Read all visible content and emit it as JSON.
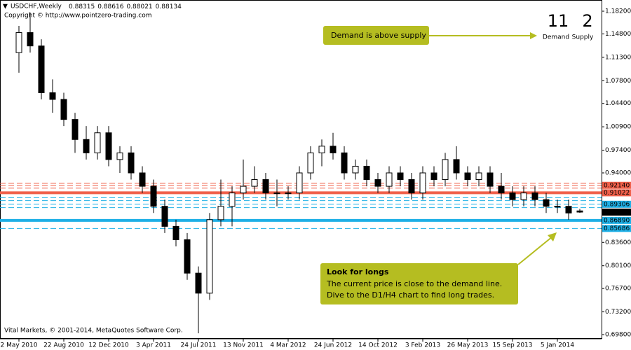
{
  "chart_data": {
    "type": "candlestick",
    "title": "USDCHF,Weekly",
    "last_ohlc": [
      0.88315,
      0.88616,
      0.88021,
      0.88134
    ],
    "copyright": "Copyright © http://www.pointzero-trading.com",
    "footer": "Vital Markets, © 2001-2014, MetaQuotes Software Corp.",
    "score": {
      "demand_count": 11,
      "demand_label": "Demand",
      "demand_color": "#1fb0e6",
      "supply_count": 2,
      "supply_label": "Supply",
      "supply_color": "#f0604a"
    },
    "annotations": [
      {
        "title": "Demand is above supply"
      },
      {
        "title": "Look for longs",
        "lines": [
          "The current price is close to the demand line.",
          "Dive to the D1/H4 chart to find long trades."
        ]
      }
    ],
    "categories": [
      "2 May 2010",
      null,
      null,
      null,
      "22 Aug 2010",
      null,
      null,
      null,
      "12 Dec 2010",
      null,
      null,
      null,
      "3 Apr 2011",
      null,
      null,
      null,
      "24 Jul 2011",
      null,
      null,
      null,
      "13 Nov 2011",
      null,
      null,
      null,
      "4 Mar 2012",
      null,
      null,
      null,
      "24 Jun 2012",
      null,
      null,
      null,
      "14 Oct 2012",
      null,
      null,
      null,
      "3 Feb 2013",
      null,
      null,
      null,
      "26 May 2013",
      null,
      null,
      null,
      "15 Sep 2013",
      null,
      null,
      null,
      "5 Jan 2014",
      null,
      null
    ],
    "open": [
      1.12,
      1.15,
      1.13,
      1.06,
      1.05,
      1.02,
      0.99,
      0.97,
      1.0,
      0.96,
      0.97,
      0.94,
      0.92,
      0.89,
      0.86,
      0.84,
      0.79,
      0.76,
      0.87,
      0.89,
      0.91,
      0.92,
      0.93,
      0.91,
      0.91,
      0.91,
      0.94,
      0.97,
      0.98,
      0.97,
      0.94,
      0.95,
      0.93,
      0.92,
      0.94,
      0.93,
      0.91,
      0.94,
      0.93,
      0.96,
      0.94,
      0.93,
      0.94,
      0.92,
      0.91,
      0.9,
      0.91,
      0.9,
      0.89,
      0.89,
      0.88315
    ],
    "high": [
      1.16,
      1.18,
      1.14,
      1.08,
      1.06,
      1.03,
      1.01,
      1.01,
      1.01,
      0.98,
      0.98,
      0.95,
      0.93,
      0.9,
      0.87,
      0.85,
      0.8,
      0.88,
      0.93,
      0.92,
      0.96,
      0.95,
      0.94,
      0.93,
      0.92,
      0.95,
      0.98,
      0.99,
      1.0,
      0.98,
      0.96,
      0.96,
      0.94,
      0.95,
      0.95,
      0.94,
      0.95,
      0.95,
      0.97,
      0.98,
      0.95,
      0.95,
      0.95,
      0.94,
      0.92,
      0.92,
      0.92,
      0.91,
      0.9,
      0.9,
      0.88616
    ],
    "low": [
      1.09,
      1.12,
      1.05,
      1.03,
      1.01,
      0.97,
      0.96,
      0.96,
      0.95,
      0.94,
      0.93,
      0.91,
      0.88,
      0.85,
      0.83,
      0.78,
      0.7,
      0.75,
      0.86,
      0.86,
      0.9,
      0.91,
      0.9,
      0.89,
      0.9,
      0.9,
      0.93,
      0.95,
      0.96,
      0.93,
      0.93,
      0.92,
      0.91,
      0.91,
      0.92,
      0.9,
      0.9,
      0.92,
      0.92,
      0.93,
      0.92,
      0.92,
      0.91,
      0.9,
      0.89,
      0.89,
      0.89,
      0.88,
      0.88,
      0.87,
      0.88021
    ],
    "close": [
      1.15,
      1.13,
      1.06,
      1.05,
      1.02,
      0.99,
      0.97,
      1.0,
      0.96,
      0.97,
      0.94,
      0.92,
      0.89,
      0.86,
      0.84,
      0.79,
      0.76,
      0.87,
      0.89,
      0.91,
      0.92,
      0.93,
      0.91,
      0.91,
      0.91,
      0.94,
      0.97,
      0.98,
      0.97,
      0.94,
      0.95,
      0.93,
      0.92,
      0.94,
      0.93,
      0.91,
      0.94,
      0.93,
      0.96,
      0.94,
      0.93,
      0.94,
      0.92,
      0.91,
      0.9,
      0.91,
      0.9,
      0.89,
      0.89,
      0.88,
      0.88134
    ],
    "ylim": [
      0.698,
      1.182
    ],
    "yticks": [
      {
        "value": 1.182,
        "label": "1.18200"
      },
      {
        "value": 1.148,
        "label": "1.14800"
      },
      {
        "value": 1.113,
        "label": "1.11300"
      },
      {
        "value": 1.078,
        "label": "1.07800"
      },
      {
        "value": 1.044,
        "label": "1.04400"
      },
      {
        "value": 1.009,
        "label": "1.00900"
      },
      {
        "value": 0.974,
        "label": "0.97400"
      },
      {
        "value": 0.94,
        "label": "0.94000"
      },
      {
        "value": 0.836,
        "label": "0.83600"
      },
      {
        "value": 0.801,
        "label": "0.80100"
      },
      {
        "value": 0.767,
        "label": "0.76700"
      },
      {
        "value": 0.732,
        "label": "0.73200"
      },
      {
        "value": 0.698,
        "label": "0.69800"
      }
    ],
    "levels": [
      {
        "value": 0.9244,
        "color": "#f0604a",
        "style": "dashed"
      },
      {
        "value": 0.9214,
        "label": "0.92140",
        "color": "#f0604a",
        "style": "dashed"
      },
      {
        "value": 0.9172,
        "color": "#f0604a",
        "style": "dashed"
      },
      {
        "value": 0.91022,
        "label": "0.91022",
        "color": "#f0604a",
        "style": "solid"
      },
      {
        "value": 0.903,
        "color": "#1fb0e6",
        "style": "dashed"
      },
      {
        "value": 0.8985,
        "color": "#1fb0e6",
        "style": "dashed"
      },
      {
        "value": 0.89306,
        "label": "0.89306",
        "color": "#1fb0e6",
        "style": "dashed"
      },
      {
        "value": 0.888,
        "color": "#1fb0e6",
        "style": "dashed"
      },
      {
        "value": 0.8689,
        "label": "0.86890",
        "color": "#1fb0e6",
        "style": "solid"
      },
      {
        "value": 0.85686,
        "label": "0.85686",
        "color": "#1fb0e6",
        "style": "dashed"
      }
    ]
  }
}
